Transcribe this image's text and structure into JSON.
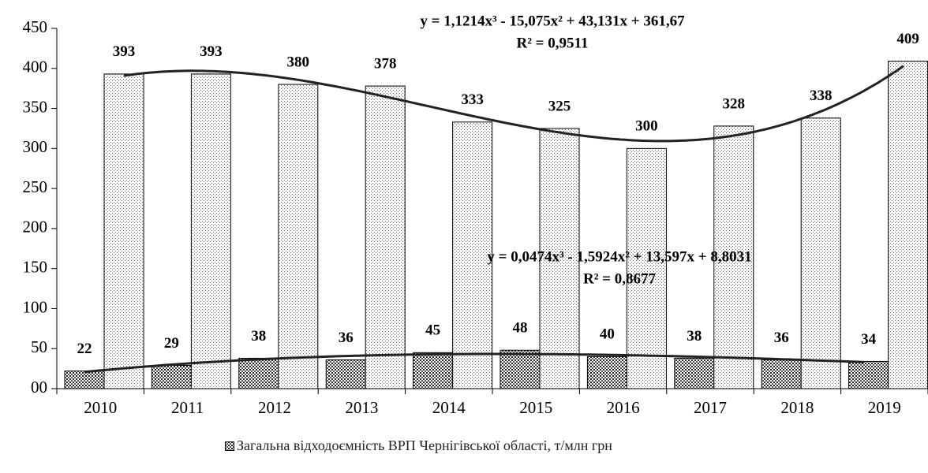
{
  "chart_data": {
    "type": "bar",
    "categories": [
      "2010",
      "2011",
      "2012",
      "2013",
      "2014",
      "2015",
      "2016",
      "2017",
      "2018",
      "2019"
    ],
    "series": [
      {
        "name": "Загальна відходоємність ВРП Чернігівської області, т/млн грн",
        "color": "#333333",
        "values": [
          22,
          29,
          38,
          36,
          45,
          48,
          40,
          38,
          36,
          34
        ]
      },
      {
        "color": "#aaaaaa",
        "values": [
          393,
          393,
          380,
          378,
          333,
          325,
          300,
          328,
          338,
          409
        ]
      }
    ],
    "trendlines": [
      {
        "series": 1,
        "coefficients": [
          1.1214,
          -15.075,
          43.131,
          361.67
        ],
        "equation": "y = 1,1214x³ - 15,075x² + 43,131x + 361,67",
        "r2": "R² = 0,9511"
      },
      {
        "series": 0,
        "coefficients": [
          0.0474,
          -1.5924,
          13.597,
          8.8031
        ],
        "equation": "y = 0,0474x³ - 1,5924x² + 13,597x + 8,8031",
        "r2": "R² = 0,8677"
      }
    ],
    "ylim": [
      0,
      450
    ],
    "yticks": [
      {
        "value": 0,
        "label": "00"
      },
      50,
      100,
      150,
      200,
      250,
      300,
      350,
      400,
      450
    ],
    "grid": false
  }
}
